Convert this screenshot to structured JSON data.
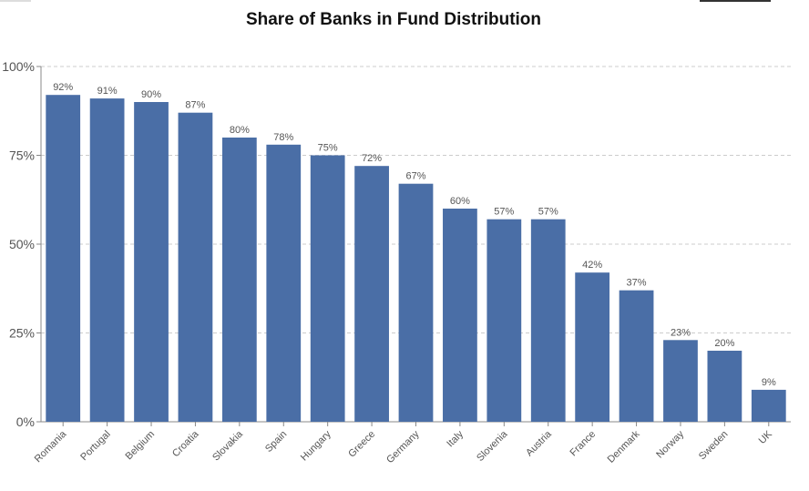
{
  "chart_data": {
    "type": "bar",
    "title": "Share of Banks in Fund Distribution",
    "xlabel": "",
    "ylabel": "",
    "categories": [
      "Romania",
      "Portugal",
      "Belgium",
      "Croatia",
      "Slovakia",
      "Spain",
      "Hungary",
      "Greece",
      "Germany",
      "Italy",
      "Slovenia",
      "Austria",
      "France",
      "Denmark",
      "Norway",
      "Sweden",
      "UK"
    ],
    "values": [
      92,
      91,
      90,
      87,
      80,
      78,
      75,
      72,
      67,
      60,
      57,
      57,
      42,
      37,
      23,
      20,
      9
    ],
    "data_labels": [
      "92%",
      "91%",
      "90%",
      "87%",
      "80%",
      "78%",
      "75%",
      "72%",
      "67%",
      "60%",
      "57%",
      "57%",
      "42%",
      "37%",
      "23%",
      "20%",
      "9%"
    ],
    "ylim": [
      0,
      100
    ],
    "yticks": [
      0,
      25,
      50,
      75,
      100
    ],
    "ytick_labels": [
      "0%",
      "25%",
      "50%",
      "75%",
      "100%"
    ],
    "grid": true,
    "legend": "none",
    "colors": {
      "bar": "#4a6ea6",
      "grid": "#cccccc",
      "axis": "#888888",
      "tick_text": "#555555",
      "label_text": "#555555"
    }
  }
}
